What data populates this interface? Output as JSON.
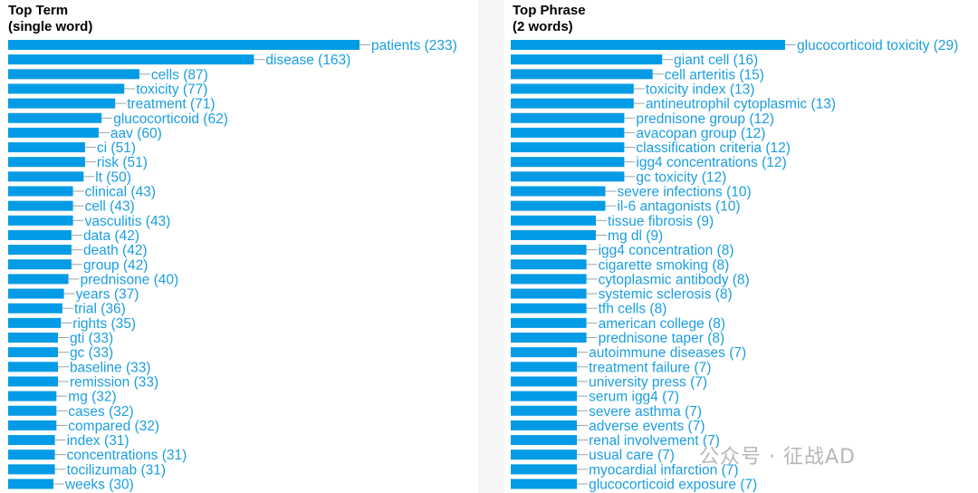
{
  "watermark": "公众号 · 征战AD",
  "chart_data": [
    {
      "type": "bar",
      "orientation": "horizontal",
      "title": [
        "Top Term",
        "(single word)"
      ],
      "categories": [
        "patients",
        "disease",
        "cells",
        "toxicity",
        "treatment",
        "glucocorticoid",
        "aav",
        "ci",
        "risk",
        "lt",
        "clinical",
        "cell",
        "vasculitis",
        "data",
        "death",
        "group",
        "prednisone",
        "years",
        "trial",
        "rights",
        "gti",
        "gc",
        "baseline",
        "remission",
        "mg",
        "cases",
        "compared",
        "index",
        "concentrations",
        "tocilizumab",
        "weeks"
      ],
      "values": [
        233,
        163,
        87,
        77,
        71,
        62,
        60,
        51,
        51,
        50,
        43,
        43,
        43,
        42,
        42,
        42,
        40,
        37,
        36,
        35,
        33,
        33,
        33,
        33,
        32,
        32,
        32,
        31,
        31,
        31,
        30
      ],
      "bar_color": "#039be5",
      "label_color": "#1a9ee0"
    },
    {
      "type": "bar",
      "orientation": "horizontal",
      "title": [
        "Top Phrase",
        "(2 words)"
      ],
      "categories": [
        "glucocorticoid toxicity",
        "giant cell",
        "cell arteritis",
        "toxicity index",
        "antineutrophil cytoplasmic",
        "prednisone group",
        "avacopan group",
        "classification criteria",
        "igg4 concentrations",
        "gc toxicity",
        "severe infections",
        "il-6 antagonists",
        "tissue fibrosis",
        "mg dl",
        "igg4 concentration",
        "cigarette smoking",
        "cytoplasmic antibody",
        "systemic sclerosis",
        "tfh cells",
        "american college",
        "prednisone taper",
        "autoimmune diseases",
        "treatment failure",
        "university press",
        "serum igg4",
        "severe asthma",
        "adverse events",
        "renal involvement",
        "usual care",
        "myocardial infarction",
        "glucocorticoid exposure"
      ],
      "values": [
        29,
        16,
        15,
        13,
        13,
        12,
        12,
        12,
        12,
        12,
        10,
        10,
        9,
        9,
        8,
        8,
        8,
        8,
        8,
        8,
        8,
        7,
        7,
        7,
        7,
        7,
        7,
        7,
        7,
        7,
        7
      ],
      "bar_color": "#039be5",
      "label_color": "#1a9ee0"
    }
  ]
}
